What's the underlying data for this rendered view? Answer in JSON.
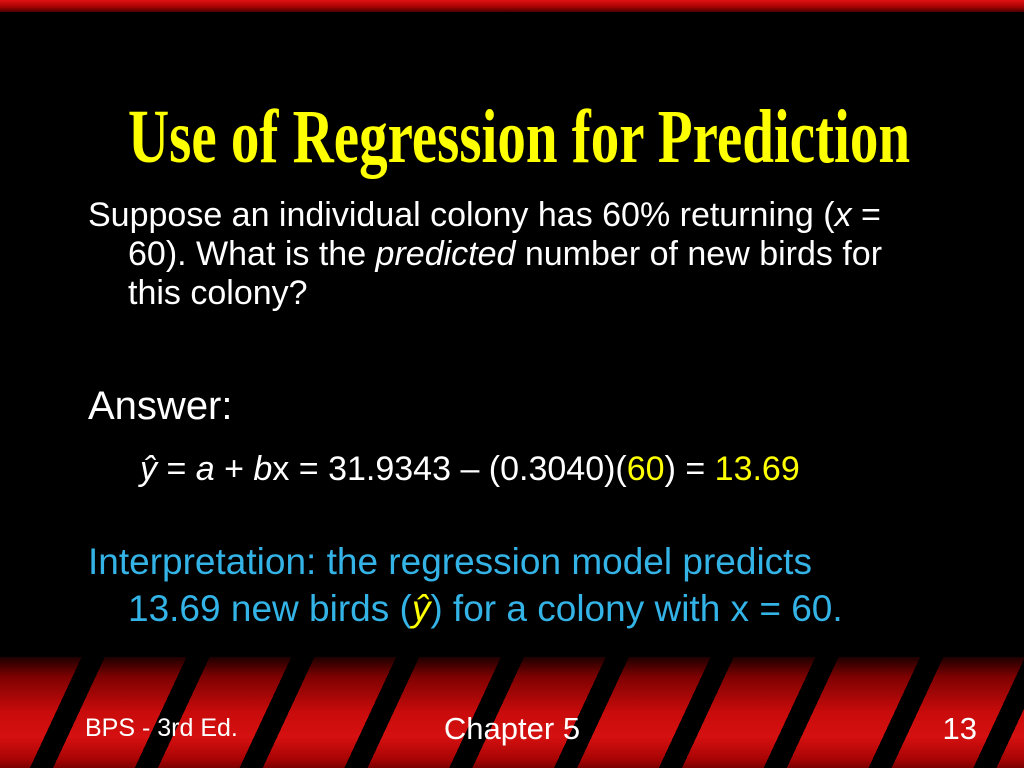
{
  "slide_title": "Use of Regression for Prediction",
  "question": {
    "l1a": "Suppose an individual colony has 60% returning (",
    "l1b_italic": "x",
    "l1c": " =",
    "l2a": "60). What is the ",
    "l2b_italic": "predicted",
    "l2c": " number of new birds for",
    "l3": "this colony?"
  },
  "answer": {
    "label": "Answer:",
    "eq_yhat": "ŷ",
    "eq_eq1": " = ",
    "eq_a": "a",
    "eq_plus": " + ",
    "eq_b": "b",
    "eq_x": "x",
    "eq_mid": " = 31.9343 – (0.3040)(",
    "eq_60": "60",
    "eq_close": ") = ",
    "eq_result": "13.69"
  },
  "interpretation": {
    "l1": "Interpretation: the regression model predicts",
    "l2a": "13.69 new birds (",
    "l2b_yhat": "ŷ",
    "l2c": ") for a colony with x = 60."
  },
  "footer": {
    "edition": "BPS - 3rd Ed.",
    "chapter": "Chapter 5",
    "page_number": "13"
  },
  "colors": {
    "background": "#000000",
    "title_yellow": "#feff01",
    "body_white": "#ffffff",
    "highlight_yellow": "#feff01",
    "interpretation_blue": "#33b3e6",
    "footer_red": "#c90b0b",
    "stripe_black": "#000000"
  }
}
